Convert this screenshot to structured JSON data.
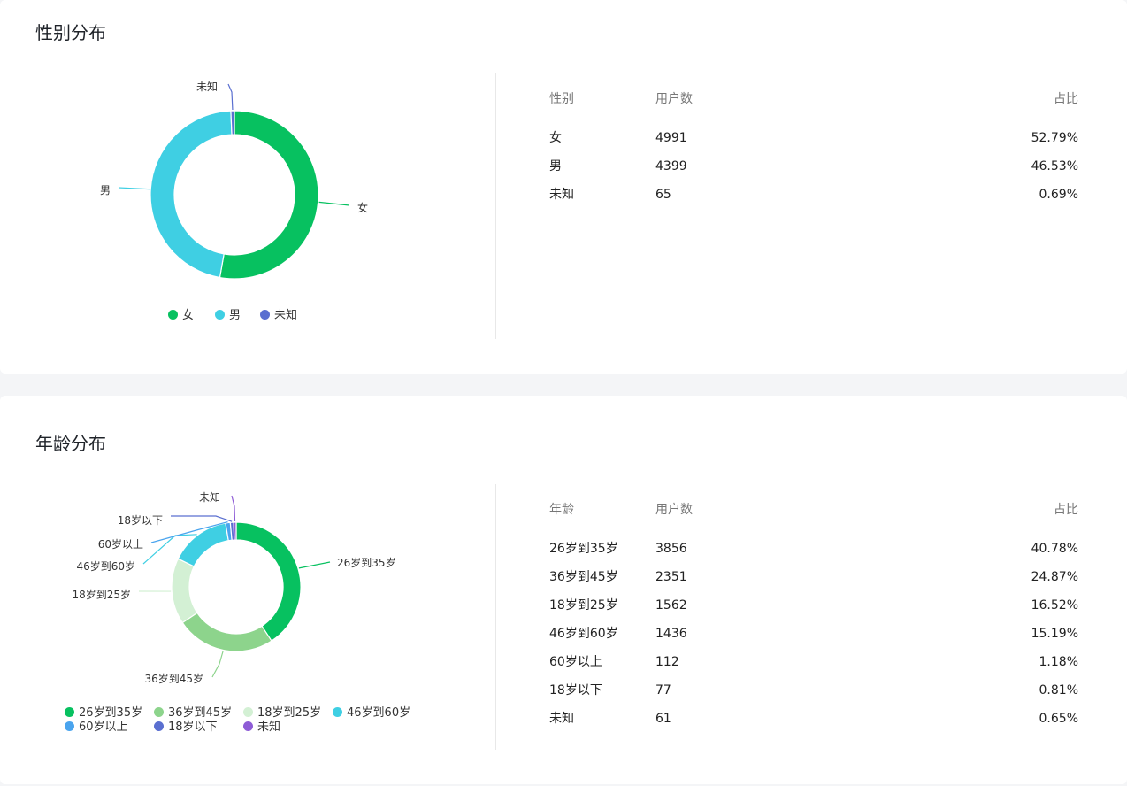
{
  "chart_data": [
    {
      "type": "pie",
      "title": "性别分布",
      "categories": [
        "女",
        "男",
        "未知"
      ],
      "values": [
        4991,
        4399,
        65
      ],
      "colors": [
        "#07c160",
        "#3fcfe3",
        "#5a6fd0"
      ],
      "legend_position": "bottom",
      "table": {
        "headers": [
          "性别",
          "用户数",
          "占比"
        ],
        "rows": [
          [
            "女",
            "4991",
            "52.79%"
          ],
          [
            "男",
            "4399",
            "46.53%"
          ],
          [
            "未知",
            "65",
            "0.69%"
          ]
        ]
      }
    },
    {
      "type": "pie",
      "title": "年龄分布",
      "categories": [
        "26岁到35岁",
        "36岁到45岁",
        "18岁到25岁",
        "46岁到60岁",
        "60岁以上",
        "18岁以下",
        "未知"
      ],
      "values": [
        3856,
        2351,
        1562,
        1436,
        112,
        77,
        61
      ],
      "colors": [
        "#07c160",
        "#8dd48c",
        "#d3f0d4",
        "#3fcfe3",
        "#4aa4ee",
        "#5a6fd0",
        "#8e5cd6"
      ],
      "legend_position": "bottom",
      "table": {
        "headers": [
          "年龄",
          "用户数",
          "占比"
        ],
        "rows": [
          [
            "26岁到35岁",
            "3856",
            "40.78%"
          ],
          [
            "36岁到45岁",
            "2351",
            "24.87%"
          ],
          [
            "18岁到25岁",
            "1562",
            "16.52%"
          ],
          [
            "46岁到60岁",
            "1436",
            "15.19%"
          ],
          [
            "60岁以上",
            "112",
            "1.18%"
          ],
          [
            "18岁以下",
            "77",
            "0.81%"
          ],
          [
            "未知",
            "61",
            "0.65%"
          ]
        ]
      }
    }
  ]
}
